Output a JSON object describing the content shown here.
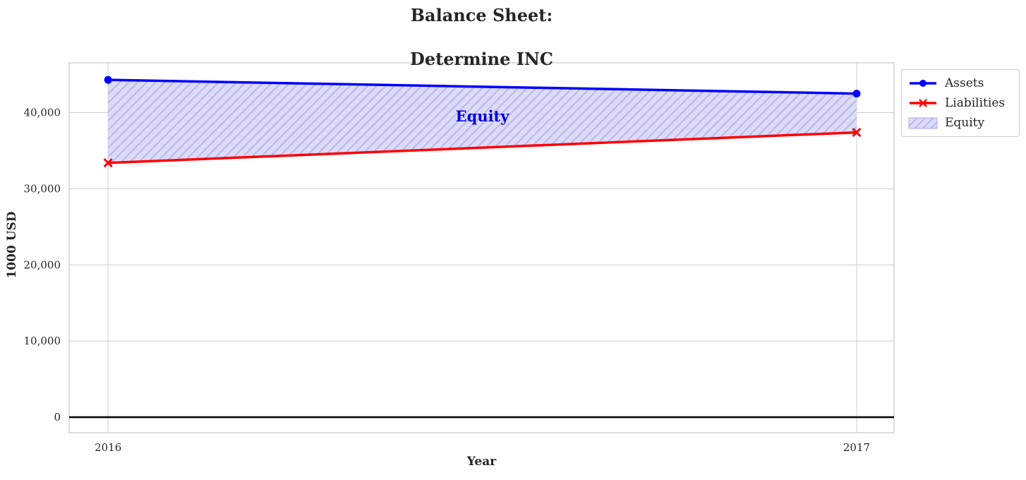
{
  "title": {
    "line1": "Balance Sheet:",
    "line2": "Determine INC"
  },
  "chart_data": {
    "type": "line",
    "x": [
      2016,
      2017
    ],
    "xtick_labels": [
      "2016",
      "2017"
    ],
    "series": [
      {
        "name": "Assets",
        "values": [
          44300,
          42500
        ],
        "color": "#0000ff",
        "marker": "circle"
      },
      {
        "name": "Liabilities",
        "values": [
          33400,
          37400
        ],
        "color": "#ff0000",
        "marker": "x"
      }
    ],
    "fill_between": {
      "label": "Equity",
      "between": [
        "Assets",
        "Liabilities"
      ],
      "face_color": "#dcdbf8",
      "hatch_color": "#b9b7ee",
      "hatch": "//"
    },
    "annotation": {
      "text": "Equity",
      "x": 2016.5,
      "y": 39500,
      "color": "#0000dd"
    },
    "xlabel": "Year",
    "ylabel": "1000 USD",
    "xlim": [
      2015.948,
      2017.05
    ],
    "ylim": [
      -2040,
      46540
    ],
    "yticks": [
      0,
      10000,
      20000,
      30000,
      40000
    ],
    "ytick_labels": [
      "0",
      "10,000",
      "20,000",
      "30,000",
      "40,000"
    ],
    "grid": true,
    "zero_line": true,
    "legend": {
      "position": "upper-right-outside",
      "entries": [
        {
          "label": "Assets"
        },
        {
          "label": "Liabilities"
        },
        {
          "label": "Equity"
        }
      ]
    }
  },
  "style": {
    "text_color": "#262626",
    "grid_color": "#cccccc",
    "axes_edge_color": "#c8c8c8",
    "zero_line_color": "#000000",
    "background": "#ffffff"
  }
}
